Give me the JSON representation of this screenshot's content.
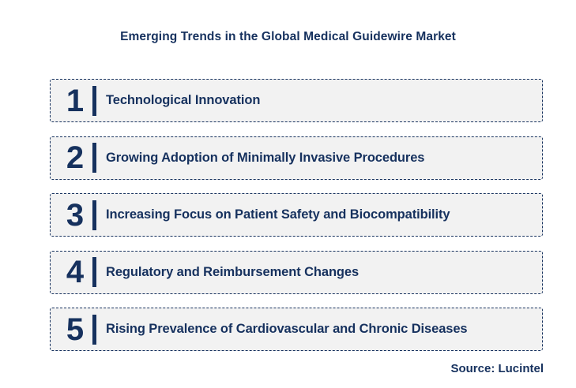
{
  "title": "Emerging Trends in the Global Medical Guidewire Market",
  "source": "Source: Lucintel",
  "colors": {
    "navy": "#16315E",
    "row_background": "#F2F2F2",
    "page_background": "#FFFFFF"
  },
  "trends": [
    {
      "number": "1",
      "label": "Technological Innovation"
    },
    {
      "number": "2",
      "label": "Growing Adoption of Minimally Invasive Procedures"
    },
    {
      "number": "3",
      "label": "Increasing Focus on Patient Safety and Biocompatibility"
    },
    {
      "number": "4",
      "label": "Regulatory and Reimbursement Changes"
    },
    {
      "number": "5",
      "label": "Rising Prevalence of Cardiovascular and Chronic Diseases"
    }
  ]
}
